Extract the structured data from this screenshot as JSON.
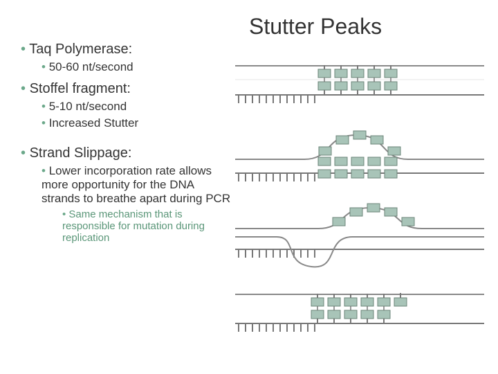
{
  "title": "Stutter Peaks",
  "bullets": {
    "taq": {
      "heading": "Taq Polymerase:",
      "rate": "50-60 nt/second"
    },
    "stoffel": {
      "heading": "Stoffel fragment:",
      "rate": "5-10 nt/second",
      "note": "Increased Stutter"
    },
    "slippage": {
      "heading": "Strand Slippage:",
      "desc": "Lower incorporation rate allows more opportunity for the DNA strands to breathe apart during PCR",
      "sub": "Same mechanism that is responsible for mutation during replication"
    }
  },
  "diagram": {
    "colors": {
      "strand": "#888888",
      "repeat_box": "#a8c4b8",
      "repeat_border": "#6b8478",
      "comb": "#777777",
      "background": "#ffffff"
    },
    "comb_teeth": 12,
    "repeat_units": 5,
    "panel_count": 4,
    "title_fontsize": 32,
    "b1_fontsize": 20,
    "b2_fontsize": 17,
    "b3_fontsize": 15,
    "accent_color": "#5a9678"
  }
}
